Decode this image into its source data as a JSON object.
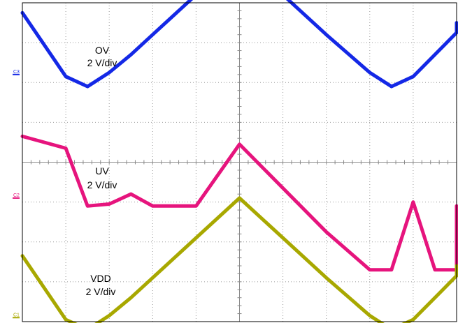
{
  "chart_data": {
    "type": "line",
    "title": "",
    "xlabel": "",
    "ylabel": "",
    "grid": true,
    "x_divisions": 10,
    "y_divisions": 8,
    "x": [
      0,
      1,
      1.5,
      2,
      2.5,
      3,
      4,
      5,
      6,
      7,
      8,
      8.5,
      9,
      9.5,
      10,
      10.25
    ],
    "series": [
      {
        "channel": "C3",
        "label_name": "OV",
        "label_scale": "2 V/div",
        "color": "#1428e6",
        "values": [
          1.55,
          -0.05,
          -0.3,
          0.05,
          0.5,
          1.0,
          2.0,
          3.0,
          2.0,
          1.0,
          0.05,
          -0.3,
          -0.05,
          0.5,
          1.05,
          1.3
        ]
      },
      {
        "channel": "C2",
        "label_name": "UV",
        "label_scale": "2 V/div",
        "color": "#e6147d",
        "values": [
          1.55,
          1.25,
          -0.2,
          -0.15,
          0.1,
          -0.2,
          -0.2,
          1.35,
          0.25,
          -0.85,
          -1.8,
          -1.8,
          -0.1,
          -1.8,
          -1.8,
          -0.2
        ]
      },
      {
        "channel": "C1",
        "label_name": "VDD",
        "label_scale": "2 V/div",
        "color": "#a8a800",
        "values": [
          1.55,
          -0.05,
          -0.3,
          0.05,
          0.5,
          1.0,
          2.0,
          3.0,
          2.0,
          1.0,
          0.05,
          -0.3,
          -0.05,
          0.5,
          1.05,
          1.3
        ]
      }
    ]
  }
}
